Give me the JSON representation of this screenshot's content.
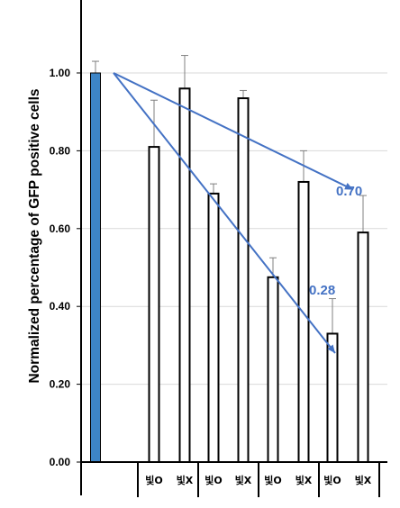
{
  "colors": {
    "highlight_bar": "#3d85c6",
    "bar_fill": "#ffffff",
    "bar_stroke": "#000000",
    "trend_line": "#4472c4",
    "annotation": "#4472c4",
    "grid": "#d9d9d9",
    "error_bar": "#808080"
  },
  "chart_data": {
    "type": "bar",
    "title": "",
    "ylabel": "Normalized percentage of GFP positive cells",
    "xlabel": "",
    "ylim": [
      0,
      1.2
    ],
    "yticks": [
      "0.00",
      "0.20",
      "0.40",
      "0.60",
      "0.80",
      "1.00"
    ],
    "grid": true,
    "categories": [
      "",
      "빛O",
      "빛X",
      "빛O",
      "빛X",
      "빛O",
      "빛X",
      "빛O",
      "빛X"
    ],
    "values": [
      1.0,
      0.81,
      0.96,
      0.69,
      0.935,
      0.475,
      0.72,
      0.33,
      0.59
    ],
    "errors": [
      0.03,
      0.12,
      0.085,
      0.025,
      0.02,
      0.05,
      0.08,
      0.09,
      0.095
    ],
    "highlight_index": 0,
    "trend_lines": [
      {
        "from_index": 0,
        "from_value": 1.0,
        "to_index": 8,
        "to_value": 0.7,
        "label": "0.70"
      },
      {
        "from_index": 0,
        "from_value": 1.0,
        "to_index": 7,
        "to_value": 0.28,
        "label": "0.28"
      }
    ]
  }
}
